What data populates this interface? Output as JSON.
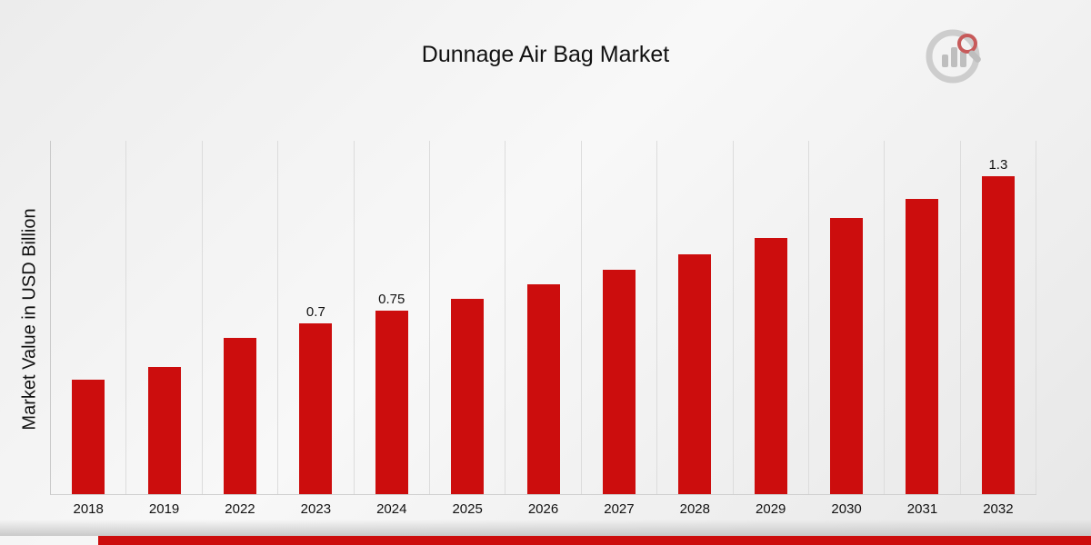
{
  "title": "Dunnage Air Bag Market",
  "ylabel": "Market Value in USD Billion",
  "colors": {
    "bar": "#cc0d0d",
    "footer_bar": "#cc0d0d",
    "gridline": "#dcdcdc",
    "text": "#111111"
  },
  "branding": {
    "logo_name": "market-research-future-logo"
  },
  "chart_data": {
    "type": "bar",
    "title": "Dunnage Air Bag Market",
    "xlabel": "",
    "ylabel": "Market Value in USD Billion",
    "categories": [
      "2018",
      "2019",
      "2022",
      "2023",
      "2024",
      "2025",
      "2026",
      "2027",
      "2028",
      "2029",
      "2030",
      "2031",
      "2032"
    ],
    "values": [
      0.47,
      0.52,
      0.64,
      0.7,
      0.75,
      0.8,
      0.86,
      0.92,
      0.98,
      1.05,
      1.13,
      1.21,
      1.3
    ],
    "data_labels": [
      "",
      "",
      "",
      "0.7",
      "0.75",
      "",
      "",
      "",
      "",
      "",
      "",
      "",
      "1.3"
    ],
    "ylim": [
      0,
      1.45
    ],
    "grid": "vertical",
    "legend": "none",
    "bar_color": "#cc0d0d"
  }
}
